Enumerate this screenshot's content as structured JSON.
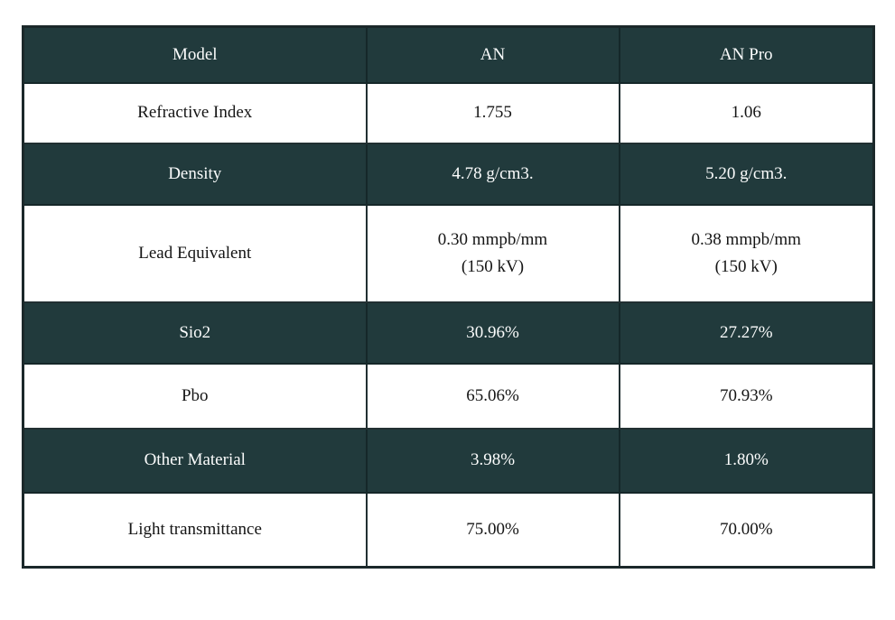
{
  "colors": {
    "dark_row_bg": "#213a3c",
    "light_row_bg": "#ffffff",
    "dark_row_text": "#fbfcfc",
    "light_row_text": "#151515",
    "outer_border": "#1b282a",
    "inner_border": "#223032"
  },
  "chart_data": {
    "type": "table",
    "columns": [
      "Model",
      "AN",
      "AN Pro"
    ],
    "rows": [
      {
        "label": "Refractive Index",
        "an": "1.755",
        "an_pro": "1.06"
      },
      {
        "label": "Density",
        "an": "4.78 g/cm3.",
        "an_pro": "5.20 g/cm3."
      },
      {
        "label": "Lead Equivalent",
        "an": "0.30 mmpb/mm\n(150 kV)",
        "an_pro": "0.38 mmpb/mm\n(150 kV)"
      },
      {
        "label": "Sio2",
        "an": "30.96%",
        "an_pro": "27.27%"
      },
      {
        "label": "Pbo",
        "an": "65.06%",
        "an_pro": "70.93%"
      },
      {
        "label": "Other Material",
        "an": "3.98%",
        "an_pro": "1.80%"
      },
      {
        "label": "Light transmittance",
        "an": "75.00%",
        "an_pro": "70.00%"
      }
    ]
  }
}
